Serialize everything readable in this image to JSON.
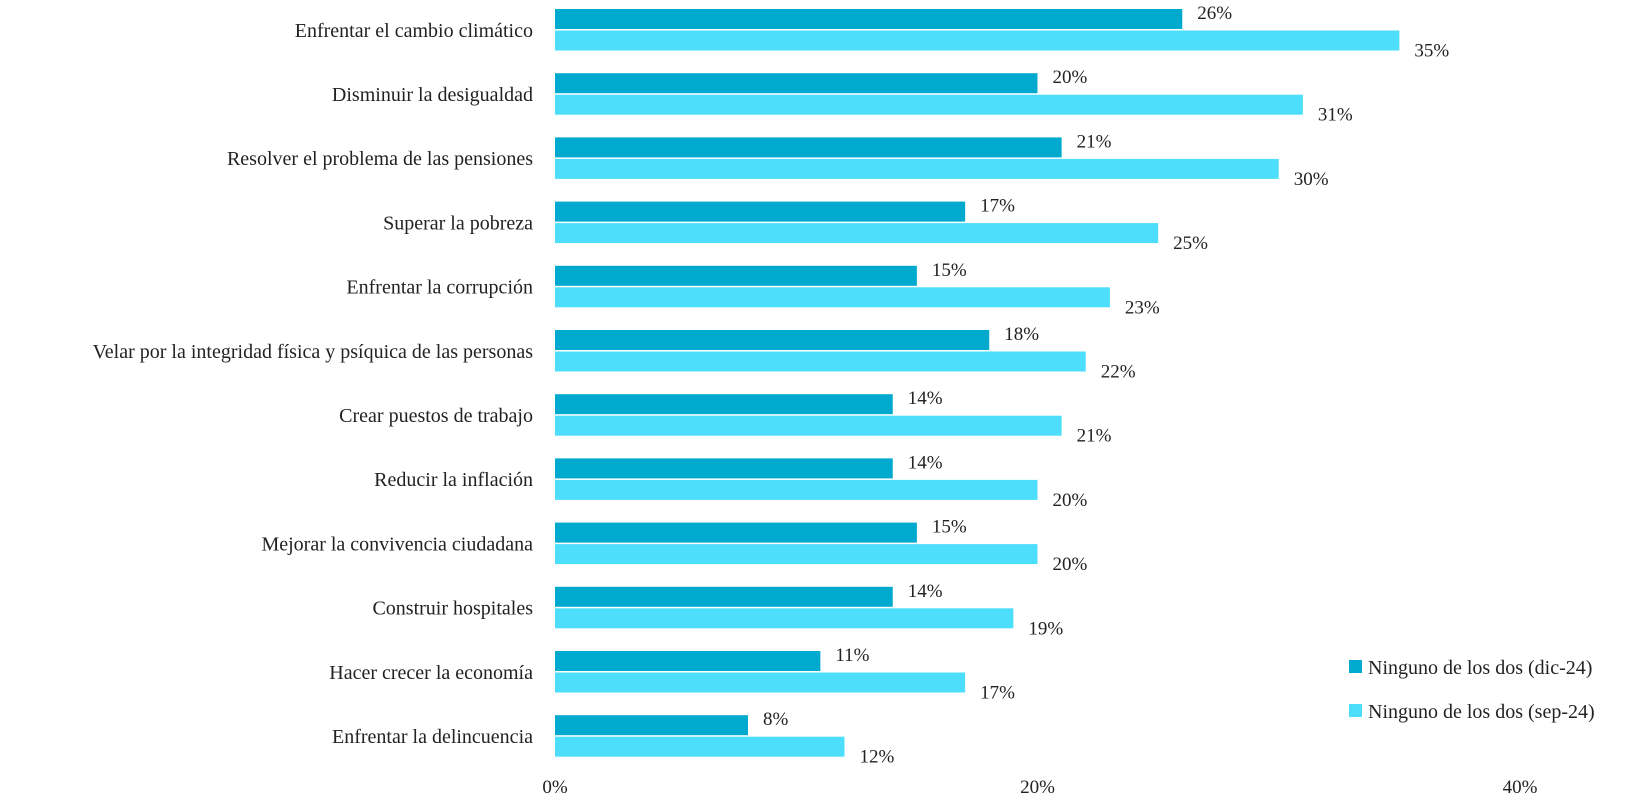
{
  "chart_data": {
    "type": "bar",
    "orientation": "horizontal",
    "title": "",
    "xlabel": "",
    "ylabel": "",
    "xlim": [
      0,
      40
    ],
    "x_ticks": [
      "0%",
      "20%",
      "40%"
    ],
    "grid": false,
    "legend_position": "right",
    "categories": [
      "Enfrentar el cambio climático",
      "Disminuir la desigualdad",
      "Resolver el problema de las pensiones",
      "Superar la pobreza",
      "Enfrentar la corrupción",
      "Velar por la integridad física y psíquica de las personas",
      "Crear puestos de trabajo",
      "Reducir la inflación",
      "Mejorar la convivencia ciudadana",
      "Construir hospitales",
      "Hacer crecer la economía",
      "Enfrentar la delincuencia"
    ],
    "series": [
      {
        "name": "Ninguno de los dos (dic-24)",
        "color": "#00A9CE",
        "values": [
          26,
          20,
          21,
          17,
          15,
          18,
          14,
          14,
          15,
          14,
          11,
          8
        ]
      },
      {
        "name": "Ninguno de los dos (sep-24)",
        "color": "#4CDEFA",
        "values": [
          35,
          31,
          30,
          25,
          23,
          22,
          21,
          20,
          20,
          19,
          17,
          12
        ]
      }
    ],
    "value_suffix": "%"
  }
}
